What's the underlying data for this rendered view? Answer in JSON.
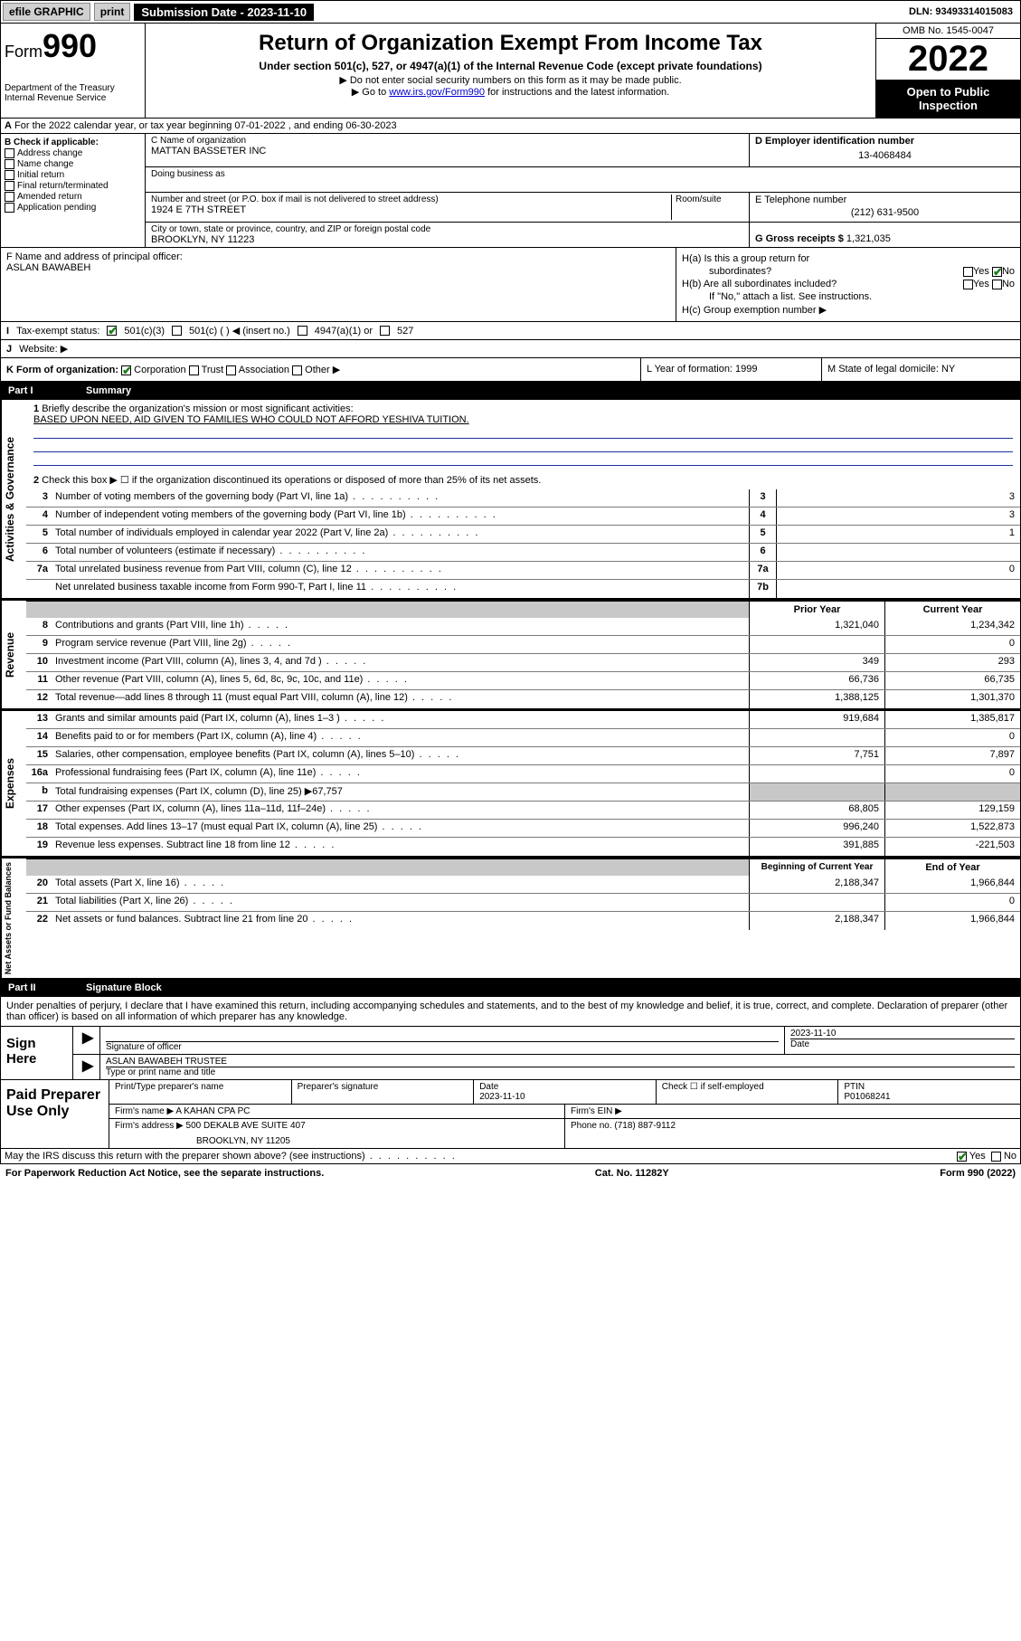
{
  "topbar": {
    "efile": "efile GRAPHIC",
    "print": "print",
    "sub_label": "Submission Date - 2023-11-10",
    "dln": "DLN: 93493314015083"
  },
  "header": {
    "form_word": "Form",
    "form_num": "990",
    "dept": "Department of the Treasury",
    "irs": "Internal Revenue Service",
    "title": "Return of Organization Exempt From Income Tax",
    "sub1": "Under section 501(c), 527, or 4947(a)(1) of the Internal Revenue Code (except private foundations)",
    "sub2": "▶ Do not enter social security numbers on this form as it may be made public.",
    "sub3a": "▶ Go to ",
    "sub3b": "www.irs.gov/Form990",
    "sub3c": " for instructions and the latest information.",
    "omb": "OMB No. 1545-0047",
    "year": "2022",
    "open": "Open to Public Inspection"
  },
  "rowA": "For the 2022 calendar year, or tax year beginning 07-01-2022   , and ending 06-30-2023",
  "boxB": {
    "label": "B Check if applicable:",
    "items": [
      "Address change",
      "Name change",
      "Initial return",
      "Final return/terminated",
      "Amended return",
      "Application pending"
    ]
  },
  "boxC": {
    "name_lbl": "C Name of organization",
    "name": "MATTAN BASSETER INC",
    "dba_lbl": "Doing business as",
    "addr_lbl": "Number and street (or P.O. box if mail is not delivered to street address)",
    "room_lbl": "Room/suite",
    "addr": "1924 E 7TH STREET",
    "city_lbl": "City or town, state or province, country, and ZIP or foreign postal code",
    "city": "BROOKLYN, NY  11223"
  },
  "boxD": {
    "lbl": "D Employer identification number",
    "val": "13-4068484"
  },
  "boxE": {
    "lbl": "E Telephone number",
    "val": "(212) 631-9500"
  },
  "boxG": {
    "lbl": "G Gross receipts $",
    "val": "1,321,035"
  },
  "boxF": {
    "lbl": "F  Name and address of principal officer:",
    "val": "ASLAN BAWABEH"
  },
  "boxH": {
    "a": "H(a)  Is this a group return for",
    "a2": "subordinates?",
    "b": "H(b)  Are all subordinates included?",
    "b2": "If \"No,\" attach a list. See instructions.",
    "c": "H(c)  Group exemption number ▶",
    "yes": "Yes",
    "no": "No"
  },
  "rowI": {
    "lbl": "Tax-exempt status:",
    "o1": "501(c)(3)",
    "o2": "501(c) (  ) ◀ (insert no.)",
    "o3": "4947(a)(1) or",
    "o4": "527"
  },
  "rowJ": "Website: ▶",
  "rowK": {
    "lbl": "K Form of organization:",
    "o1": "Corporation",
    "o2": "Trust",
    "o3": "Association",
    "o4": "Other ▶",
    "L": "L Year of formation: 1999",
    "M": "M State of legal domicile: NY"
  },
  "part1": {
    "pn": "Part I",
    "title": "Summary"
  },
  "vlabels": {
    "gov": "Activities & Governance",
    "rev": "Revenue",
    "exp": "Expenses",
    "net": "Net Assets or Fund Balances"
  },
  "l1": {
    "num": "1",
    "txt": "Briefly describe the organization's mission or most significant activities:",
    "mission": "BASED UPON NEED, AID GIVEN TO FAMILIES WHO COULD NOT AFFORD YESHIVA TUITION."
  },
  "l2": {
    "num": "2",
    "txt": "Check this box ▶ ☐  if the organization discontinued its operations or disposed of more than 25% of its net assets."
  },
  "lines_gov": [
    {
      "num": "3",
      "txt": "Number of voting members of the governing body (Part VI, line 1a)",
      "box": "3",
      "val": "3"
    },
    {
      "num": "4",
      "txt": "Number of independent voting members of the governing body (Part VI, line 1b)",
      "box": "4",
      "val": "3"
    },
    {
      "num": "5",
      "txt": "Total number of individuals employed in calendar year 2022 (Part V, line 2a)",
      "box": "5",
      "val": "1"
    },
    {
      "num": "6",
      "txt": "Total number of volunteers (estimate if necessary)",
      "box": "6",
      "val": ""
    },
    {
      "num": "7a",
      "txt": "Total unrelated business revenue from Part VIII, column (C), line 12",
      "box": "7a",
      "val": "0"
    },
    {
      "num": "",
      "txt": "Net unrelated business taxable income from Form 990-T, Part I, line 11",
      "box": "7b",
      "val": ""
    }
  ],
  "col_hdr": {
    "py": "Prior Year",
    "cy": "Current Year",
    "bcy": "Beginning of Current Year",
    "eoy": "End of Year"
  },
  "lines_rev": [
    {
      "num": "8",
      "txt": "Contributions and grants (Part VIII, line 1h)",
      "py": "1,321,040",
      "cy": "1,234,342"
    },
    {
      "num": "9",
      "txt": "Program service revenue (Part VIII, line 2g)",
      "py": "",
      "cy": "0"
    },
    {
      "num": "10",
      "txt": "Investment income (Part VIII, column (A), lines 3, 4, and 7d )",
      "py": "349",
      "cy": "293"
    },
    {
      "num": "11",
      "txt": "Other revenue (Part VIII, column (A), lines 5, 6d, 8c, 9c, 10c, and 11e)",
      "py": "66,736",
      "cy": "66,735"
    },
    {
      "num": "12",
      "txt": "Total revenue—add lines 8 through 11 (must equal Part VIII, column (A), line 12)",
      "py": "1,388,125",
      "cy": "1,301,370"
    }
  ],
  "lines_exp": [
    {
      "num": "13",
      "txt": "Grants and similar amounts paid (Part IX, column (A), lines 1–3 )",
      "py": "919,684",
      "cy": "1,385,817"
    },
    {
      "num": "14",
      "txt": "Benefits paid to or for members (Part IX, column (A), line 4)",
      "py": "",
      "cy": "0"
    },
    {
      "num": "15",
      "txt": "Salaries, other compensation, employee benefits (Part IX, column (A), lines 5–10)",
      "py": "7,751",
      "cy": "7,897"
    },
    {
      "num": "16a",
      "txt": "Professional fundraising fees (Part IX, column (A), line 11e)",
      "py": "",
      "cy": "0"
    },
    {
      "num": "b",
      "txt": "Total fundraising expenses (Part IX, column (D), line 25) ▶67,757",
      "py": null,
      "cy": null,
      "grey": true
    },
    {
      "num": "17",
      "txt": "Other expenses (Part IX, column (A), lines 11a–11d, 11f–24e)",
      "py": "68,805",
      "cy": "129,159"
    },
    {
      "num": "18",
      "txt": "Total expenses. Add lines 13–17 (must equal Part IX, column (A), line 25)",
      "py": "996,240",
      "cy": "1,522,873"
    },
    {
      "num": "19",
      "txt": "Revenue less expenses. Subtract line 18 from line 12",
      "py": "391,885",
      "cy": "-221,503"
    }
  ],
  "lines_net": [
    {
      "num": "20",
      "txt": "Total assets (Part X, line 16)",
      "py": "2,188,347",
      "cy": "1,966,844"
    },
    {
      "num": "21",
      "txt": "Total liabilities (Part X, line 26)",
      "py": "",
      "cy": "0"
    },
    {
      "num": "22",
      "txt": "Net assets or fund balances. Subtract line 21 from line 20",
      "py": "2,188,347",
      "cy": "1,966,844"
    }
  ],
  "part2": {
    "pn": "Part II",
    "title": "Signature Block"
  },
  "sig_intro": "Under penalties of perjury, I declare that I have examined this return, including accompanying schedules and statements, and to the best of my knowledge and belief, it is true, correct, and complete. Declaration of preparer (other than officer) is based on all information of which preparer has any knowledge.",
  "sign": {
    "here": "Sign Here",
    "sig_lbl": "Signature of officer",
    "date_lbl": "Date",
    "date": "2023-11-10",
    "name": "ASLAN BAWABEH  TRUSTEE",
    "name_lbl": "Type or print name and title"
  },
  "prep": {
    "title": "Paid Preparer Use Only",
    "pt_lbl": "Print/Type preparer's name",
    "sig_lbl": "Preparer's signature",
    "date_lbl": "Date",
    "date": "2023-11-10",
    "check_lbl": "Check ☐ if self-employed",
    "ptin_lbl": "PTIN",
    "ptin": "P01068241",
    "firm_name_lbl": "Firm's name    ▶",
    "firm_name": "A KAHAN CPA PC",
    "ein_lbl": "Firm's EIN ▶",
    "firm_addr_lbl": "Firm's address ▶",
    "firm_addr1": "500 DEKALB AVE SUITE 407",
    "firm_addr2": "BROOKLYN, NY  11205",
    "phone_lbl": "Phone no.",
    "phone": "(718) 887-9112"
  },
  "discuss": {
    "txt": "May the IRS discuss this return with the preparer shown above? (see instructions)",
    "yes": "Yes",
    "no": "No"
  },
  "footer": {
    "left": "For Paperwork Reduction Act Notice, see the separate instructions.",
    "mid": "Cat. No. 11282Y",
    "right": "Form 990 (2022)"
  }
}
